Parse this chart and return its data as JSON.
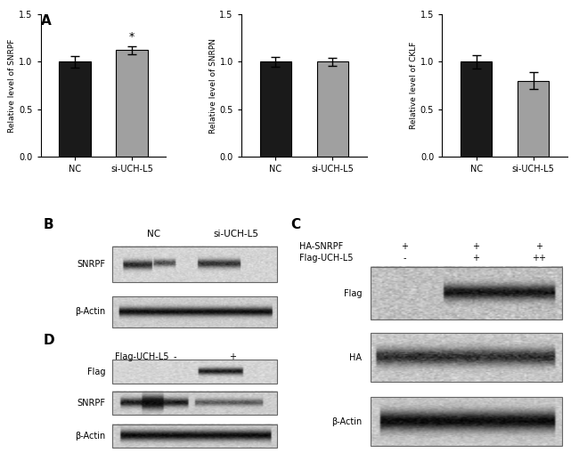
{
  "panel_A": {
    "charts": [
      {
        "ylabel": "Relative level of SNRPF",
        "categories": [
          "NC",
          "si-UCH-L5"
        ],
        "values": [
          1.0,
          1.12
        ],
        "errors": [
          0.06,
          0.04
        ],
        "colors": [
          "#1a1a1a",
          "#a0a0a0"
        ],
        "ylim": [
          0,
          1.5
        ],
        "yticks": [
          0.0,
          0.5,
          1.0,
          1.5
        ],
        "star": true
      },
      {
        "ylabel": "Relative level of SNRPN",
        "categories": [
          "NC",
          "si-UCH-L5"
        ],
        "values": [
          1.0,
          1.0
        ],
        "errors": [
          0.05,
          0.04
        ],
        "colors": [
          "#1a1a1a",
          "#a0a0a0"
        ],
        "ylim": [
          0,
          1.5
        ],
        "yticks": [
          0.0,
          0.5,
          1.0,
          1.5
        ],
        "star": false
      },
      {
        "ylabel": "Relative level of CKLF",
        "categories": [
          "NC",
          "si-UCH-L5"
        ],
        "values": [
          1.0,
          0.8
        ],
        "errors": [
          0.07,
          0.09
        ],
        "colors": [
          "#1a1a1a",
          "#a0a0a0"
        ],
        "ylim": [
          0,
          1.5
        ],
        "yticks": [
          0.0,
          0.5,
          1.0,
          1.5
        ],
        "star": false
      }
    ]
  },
  "background_color": "#ffffff"
}
